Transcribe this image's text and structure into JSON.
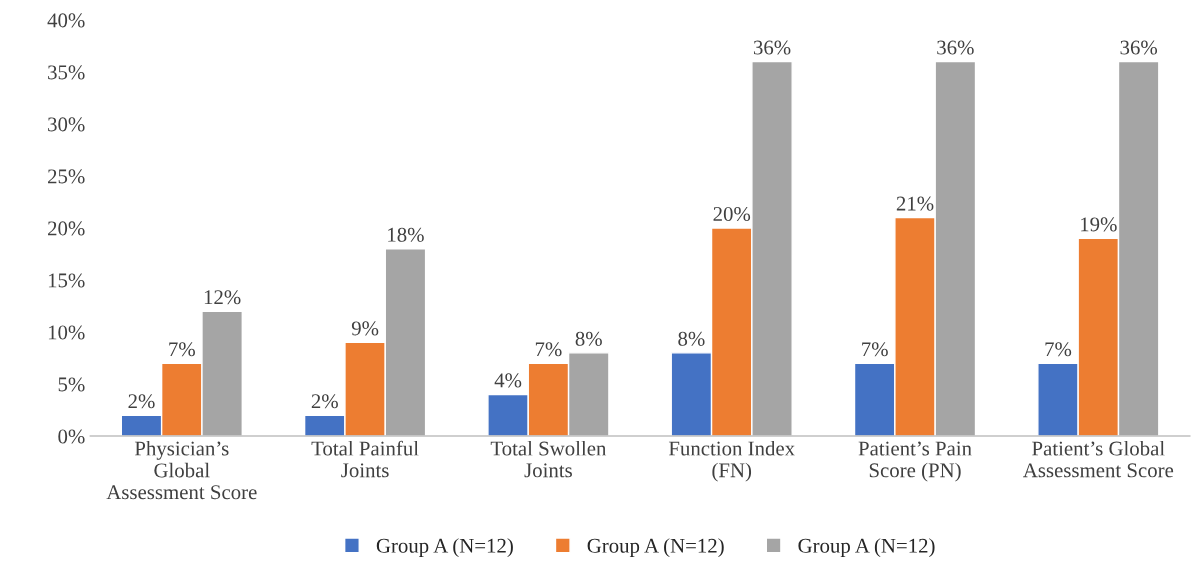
{
  "chart_data": {
    "type": "bar",
    "categories": [
      "Physician’s\nGlobal\nAssessment Score",
      "Total Painful\nJoints",
      "Total Swollen\nJoints",
      "Function Index\n(FN)",
      "Patient’s Pain\nScore (PN)",
      "Patient’s Global\nAssessment Score"
    ],
    "series": [
      {
        "name": "Group A (N=12)",
        "color": "#4472c4",
        "values": [
          2,
          2,
          4,
          8,
          7,
          7
        ],
        "value_labels": [
          "2%",
          "2%",
          "4%",
          "8%",
          "7%",
          "7%"
        ]
      },
      {
        "name": "Group A (N=12)",
        "color": "#ed7d31",
        "values": [
          7,
          9,
          7,
          20,
          21,
          19
        ],
        "value_labels": [
          "7%",
          "9%",
          "7%",
          "20%",
          "21%",
          "19%"
        ]
      },
      {
        "name": "Group A (N=12)",
        "color": "#a5a5a5",
        "values": [
          12,
          18,
          8,
          36,
          36,
          36
        ],
        "value_labels": [
          "12%",
          "18%",
          "8%",
          "36%",
          "36%",
          "36%"
        ]
      }
    ],
    "ylim": [
      0,
      40
    ],
    "yticks": [
      {
        "value": 0,
        "label": "0%"
      },
      {
        "value": 5,
        "label": "5%"
      },
      {
        "value": 10,
        "label": "10%"
      },
      {
        "value": 15,
        "label": "15%"
      },
      {
        "value": 20,
        "label": "20%"
      },
      {
        "value": 25,
        "label": "25%"
      },
      {
        "value": 30,
        "label": "30%"
      },
      {
        "value": 35,
        "label": "35%"
      },
      {
        "value": 40,
        "label": "40%"
      }
    ],
    "grid": false,
    "legend": "bottom"
  }
}
